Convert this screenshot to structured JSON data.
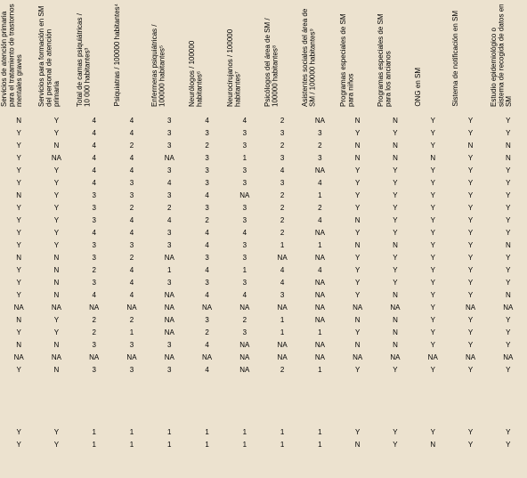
{
  "background_color": "#ece2cf",
  "text_color": "#000000",
  "font_size_header": 8,
  "font_size_cell": 8,
  "columns": [
    "Servicios de atención primaria para el tratamiento de trastornos mentales graves",
    "Servicios para formación en SM del personal de atención primaria",
    "Total de camas psiquiátricas / 10 000 habitantes³",
    "Psiquiatras / 100000 habitantes⁴",
    "Enfermeras psiquiátricas / 100000 habitantes⁵",
    "Neurólogos / 100000 habitantes⁶",
    "Neurocirujanos / 100000 habitantes⁷",
    "Psicólogos del área de SM / 100000 habitantes⁸",
    "Asistentes sociales del área de SM / 100000 habitantes⁹",
    "Programas especiales de SM para niños",
    "Programas especiales de SM para los ancianos",
    "ONG en SM",
    "Sistema de notificación en SM",
    "Estudio epidemiológico o sistema de recogida de datos en SM"
  ],
  "rows": [
    [
      "N",
      "Y",
      "4",
      "4",
      "3",
      "4",
      "4",
      "2",
      "NA",
      "N",
      "N",
      "Y",
      "Y",
      "Y"
    ],
    [
      "Y",
      "Y",
      "4",
      "4",
      "3",
      "3",
      "3",
      "3",
      "3",
      "Y",
      "Y",
      "Y",
      "Y",
      "Y"
    ],
    [
      "Y",
      "N",
      "4",
      "2",
      "3",
      "2",
      "3",
      "2",
      "2",
      "N",
      "N",
      "Y",
      "N",
      "N"
    ],
    [
      "Y",
      "NA",
      "4",
      "4",
      "NA",
      "3",
      "1",
      "3",
      "3",
      "N",
      "N",
      "N",
      "Y",
      "N"
    ],
    [
      "Y",
      "Y",
      "4",
      "4",
      "3",
      "3",
      "3",
      "4",
      "NA",
      "Y",
      "Y",
      "Y",
      "Y",
      "Y"
    ],
    [
      "Y",
      "Y",
      "4",
      "3",
      "4",
      "3",
      "3",
      "3",
      "4",
      "Y",
      "Y",
      "Y",
      "Y",
      "Y"
    ],
    [
      "N",
      "Y",
      "3",
      "3",
      "3",
      "4",
      "NA",
      "2",
      "1",
      "Y",
      "Y",
      "Y",
      "Y",
      "Y"
    ],
    [
      "Y",
      "Y",
      "3",
      "2",
      "2",
      "3",
      "3",
      "2",
      "2",
      "Y",
      "Y",
      "Y",
      "Y",
      "Y"
    ],
    [
      "Y",
      "Y",
      "3",
      "4",
      "4",
      "2",
      "3",
      "2",
      "4",
      "N",
      "Y",
      "Y",
      "Y",
      "Y"
    ],
    [
      "Y",
      "Y",
      "4",
      "4",
      "3",
      "4",
      "4",
      "2",
      "NA",
      "Y",
      "Y",
      "Y",
      "Y",
      "Y"
    ],
    [
      "Y",
      "Y",
      "3",
      "3",
      "3",
      "4",
      "3",
      "1",
      "1",
      "N",
      "N",
      "Y",
      "Y",
      "N"
    ],
    [
      "N",
      "N",
      "3",
      "2",
      "NA",
      "3",
      "3",
      "NA",
      "NA",
      "Y",
      "Y",
      "Y",
      "Y",
      "Y"
    ],
    [
      "Y",
      "N",
      "2",
      "4",
      "1",
      "4",
      "1",
      "4",
      "4",
      "Y",
      "Y",
      "Y",
      "Y",
      "Y"
    ],
    [
      "Y",
      "N",
      "3",
      "4",
      "3",
      "3",
      "3",
      "4",
      "NA",
      "Y",
      "Y",
      "Y",
      "Y",
      "Y"
    ],
    [
      "Y",
      "N",
      "4",
      "4",
      "NA",
      "4",
      "4",
      "3",
      "NA",
      "Y",
      "N",
      "Y",
      "Y",
      "N"
    ],
    [
      "NA",
      "NA",
      "NA",
      "NA",
      "NA",
      "NA",
      "NA",
      "NA",
      "NA",
      "NA",
      "NA",
      "Y",
      "NA",
      "NA"
    ],
    [
      "N",
      "Y",
      "2",
      "2",
      "NA",
      "3",
      "2",
      "1",
      "NA",
      "N",
      "N",
      "Y",
      "Y",
      "Y"
    ],
    [
      "Y",
      "Y",
      "2",
      "1",
      "NA",
      "2",
      "3",
      "1",
      "1",
      "Y",
      "N",
      "Y",
      "Y",
      "Y"
    ],
    [
      "N",
      "N",
      "3",
      "3",
      "3",
      "4",
      "NA",
      "NA",
      "NA",
      "N",
      "N",
      "Y",
      "Y",
      "Y"
    ],
    [
      "NA",
      "NA",
      "NA",
      "NA",
      "NA",
      "NA",
      "NA",
      "NA",
      "NA",
      "NA",
      "NA",
      "NA",
      "NA",
      "NA"
    ],
    [
      "Y",
      "N",
      "3",
      "3",
      "3",
      "4",
      "NA",
      "2",
      "1",
      "Y",
      "Y",
      "Y",
      "Y",
      "Y"
    ]
  ],
  "rows_after_gap": [
    [
      "Y",
      "Y",
      "1",
      "1",
      "1",
      "1",
      "1",
      "1",
      "1",
      "Y",
      "Y",
      "Y",
      "Y",
      "Y"
    ],
    [
      "Y",
      "Y",
      "1",
      "1",
      "1",
      "1",
      "1",
      "1",
      "1",
      "N",
      "Y",
      "N",
      "Y",
      "Y"
    ]
  ]
}
